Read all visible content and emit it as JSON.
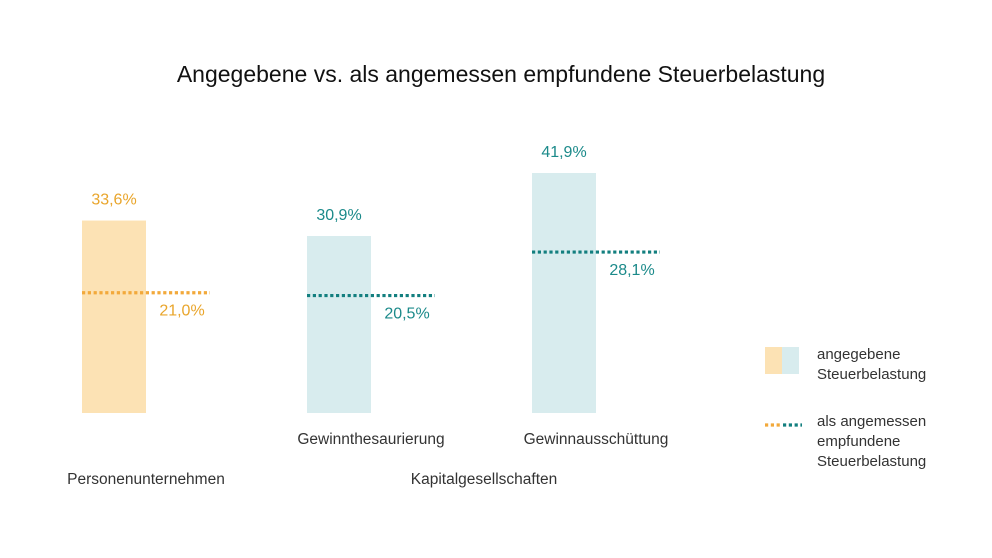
{
  "chart_data": {
    "type": "bar",
    "title": "Angegebene vs. als angemessen empfundene Steuerbelastung",
    "xlabel": "",
    "ylabel": "",
    "ylim": [
      0,
      45
    ],
    "grid": false,
    "legend_position": "right",
    "categories": [
      "Personenunternehmen",
      "Gewinnthesaurierung",
      "Gewinnausschüttung"
    ],
    "groups": [
      {
        "label": "Personenunternehmen",
        "categories": [
          "Personenunternehmen"
        ]
      },
      {
        "label": "Kapitalgesellschaften",
        "categories": [
          "Gewinnthesaurierung",
          "Gewinnausschüttung"
        ]
      }
    ],
    "series": [
      {
        "name": "angegebene Steuerbelastung",
        "values": [
          33.6,
          30.9,
          41.9
        ],
        "labels": [
          "33,6%",
          "30,9%",
          "41,9%"
        ]
      },
      {
        "name": "als angemessen empfundene Steuerbelastung",
        "values": [
          21.0,
          20.5,
          28.1
        ],
        "labels": [
          "21,0%",
          "20,5%",
          "28,1%"
        ]
      }
    ],
    "colors": {
      "orange_text": "#E9A52B",
      "orange_bar": "#FCE2B4",
      "orange_line": "#F2A93B",
      "teal_text": "#1B8A8A",
      "teal_bar": "#D8ECEE",
      "teal_line": "#137F7F"
    },
    "legend": [
      {
        "label_lines": [
          "angegebene",
          "Steuerbelastung"
        ]
      },
      {
        "label_lines": [
          "als angemessen",
          "empfundene",
          "Steuerbelastung"
        ]
      }
    ]
  }
}
